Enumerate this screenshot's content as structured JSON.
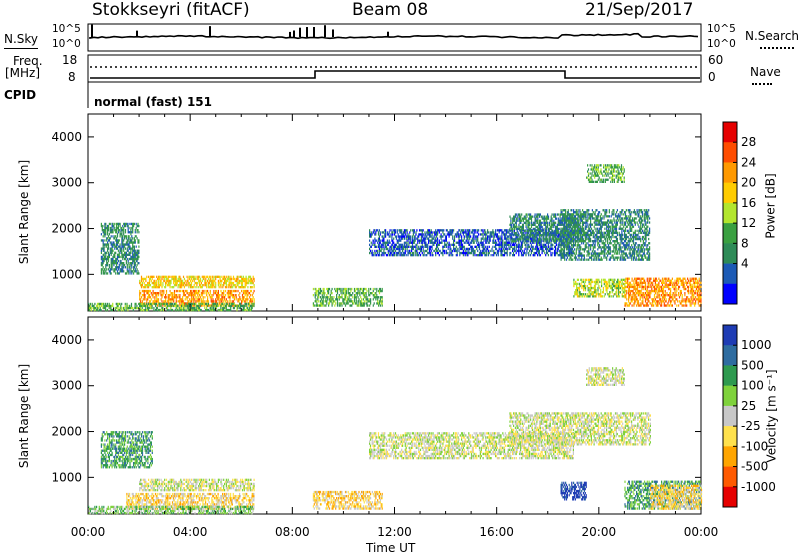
{
  "header": {
    "station": "Stokkseyri (fitACF)",
    "beam": "Beam 08",
    "date": "21/Sep/2017"
  },
  "summary_panel": {
    "nsky_label": "N.Sky",
    "nsearch_label": "N.Search",
    "noise_ticks": [
      "10^5",
      "10^0"
    ],
    "freq_label": "Freq.",
    "freq_unit": "[MHz]",
    "freq_ticks": [
      "18",
      "8"
    ],
    "nave_label": "Nave",
    "nave_ticks": [
      "60",
      "0"
    ],
    "cpid_label": "CPID",
    "cpid_value": "normal (fast) 151"
  },
  "power_colorbar": {
    "label": "Power [dB]",
    "ticks": [
      "28",
      "24",
      "20",
      "16",
      "12",
      "8",
      "4"
    ],
    "colors": [
      "#e60000",
      "#ff4d00",
      "#ff9900",
      "#ffcc00",
      "#b3e62e",
      "#3aa041",
      "#2e8b57",
      "#1c5ab5",
      "#0000ff"
    ]
  },
  "velocity_colorbar": {
    "label": "Velocity [m s⁻¹]",
    "ticks": [
      "1000",
      "500",
      "100",
      "25",
      "-25",
      "-100",
      "-500",
      "-1000"
    ],
    "colors": [
      "#1e3cb4",
      "#2e6ca0",
      "#2e9a4f",
      "#7fd23c",
      "#c8c8c8",
      "#ffe14d",
      "#ffa500",
      "#ff5a00",
      "#e60000"
    ]
  },
  "chart_data": [
    {
      "type": "heatmap",
      "name": "power",
      "ylabel": "Slant Range [km]",
      "ylim": [
        200,
        4500
      ],
      "yticks": [
        1000,
        2000,
        3000,
        4000
      ],
      "xlim": [
        0,
        24
      ],
      "xticks": [
        "00:00",
        "04:00",
        "08:00",
        "12:00",
        "16:00",
        "20:00",
        "00:00"
      ],
      "regions": [
        {
          "t": [
            0.5,
            2.0
          ],
          "r": [
            1000,
            2100
          ],
          "level": 2
        },
        {
          "t": [
            2.0,
            6.5
          ],
          "r": [
            700,
            950
          ],
          "level": 5
        },
        {
          "t": [
            2.0,
            6.5
          ],
          "r": [
            300,
            650
          ],
          "level": 6
        },
        {
          "t": [
            0.0,
            6.5
          ],
          "r": [
            200,
            350
          ],
          "level": 3
        },
        {
          "t": [
            8.8,
            11.5
          ],
          "r": [
            300,
            700
          ],
          "level": 3
        },
        {
          "t": [
            11.0,
            19.0
          ],
          "r": [
            1400,
            1950
          ],
          "level": 1
        },
        {
          "t": [
            16.5,
            19.5
          ],
          "r": [
            1700,
            2300
          ],
          "level": 2
        },
        {
          "t": [
            18.5,
            22.0
          ],
          "r": [
            1300,
            2400
          ],
          "level": 2
        },
        {
          "t": [
            19.5,
            21.0
          ],
          "r": [
            3000,
            3400
          ],
          "level": 3
        },
        {
          "t": [
            21.0,
            24.0
          ],
          "r": [
            300,
            900
          ],
          "level": 6
        },
        {
          "t": [
            19.0,
            21.0
          ],
          "r": [
            500,
            900
          ],
          "level": 4
        }
      ]
    },
    {
      "type": "heatmap",
      "name": "velocity",
      "ylabel": "Slant Range [km]",
      "xlabel": "Time UT",
      "ylim": [
        200,
        4500
      ],
      "yticks": [
        1000,
        2000,
        3000,
        4000
      ],
      "xlim": [
        0,
        24
      ],
      "xticks": [
        "00:00",
        "04:00",
        "08:00",
        "12:00",
        "16:00",
        "20:00",
        "00:00"
      ],
      "regions": [
        {
          "t": [
            0.5,
            2.5
          ],
          "r": [
            1200,
            2000
          ],
          "level": 6
        },
        {
          "t": [
            2.0,
            6.5
          ],
          "r": [
            700,
            950
          ],
          "level": 4
        },
        {
          "t": [
            1.5,
            6.5
          ],
          "r": [
            300,
            650
          ],
          "level": 3
        },
        {
          "t": [
            0.0,
            6.5
          ],
          "r": [
            200,
            350
          ],
          "level": 5
        },
        {
          "t": [
            8.8,
            11.5
          ],
          "r": [
            300,
            700
          ],
          "level": 3
        },
        {
          "t": [
            11.0,
            19.0
          ],
          "r": [
            1400,
            1950
          ],
          "level": 4
        },
        {
          "t": [
            16.5,
            22.0
          ],
          "r": [
            1700,
            2400
          ],
          "level": 4
        },
        {
          "t": [
            19.5,
            21.0
          ],
          "r": [
            3000,
            3400
          ],
          "level": 4
        },
        {
          "t": [
            18.5,
            19.5
          ],
          "r": [
            500,
            900
          ],
          "level": 8
        },
        {
          "t": [
            21.0,
            24.0
          ],
          "r": [
            300,
            900
          ],
          "level": 6
        },
        {
          "t": [
            22.0,
            24.0
          ],
          "r": [
            300,
            800
          ],
          "level": 3
        }
      ]
    }
  ]
}
